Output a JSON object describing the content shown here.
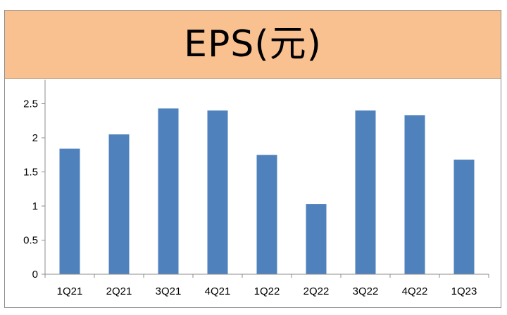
{
  "chart_data": {
    "type": "bar",
    "title": "EPS(元)",
    "categories": [
      "1Q21",
      "2Q21",
      "3Q21",
      "4Q21",
      "1Q22",
      "2Q22",
      "3Q22",
      "4Q22",
      "1Q23"
    ],
    "values": [
      1.84,
      2.05,
      2.43,
      2.4,
      1.75,
      1.03,
      2.4,
      2.33,
      1.68
    ],
    "ylim": [
      0,
      2.85
    ],
    "yticks": [
      "0",
      "0.5",
      "1",
      "1.5",
      "2",
      "2.5"
    ],
    "grid": false,
    "legend": "none",
    "colors": {
      "bar": "#4f81bd",
      "title_band": "#f9c090",
      "axis": "#8c8c8c"
    }
  }
}
